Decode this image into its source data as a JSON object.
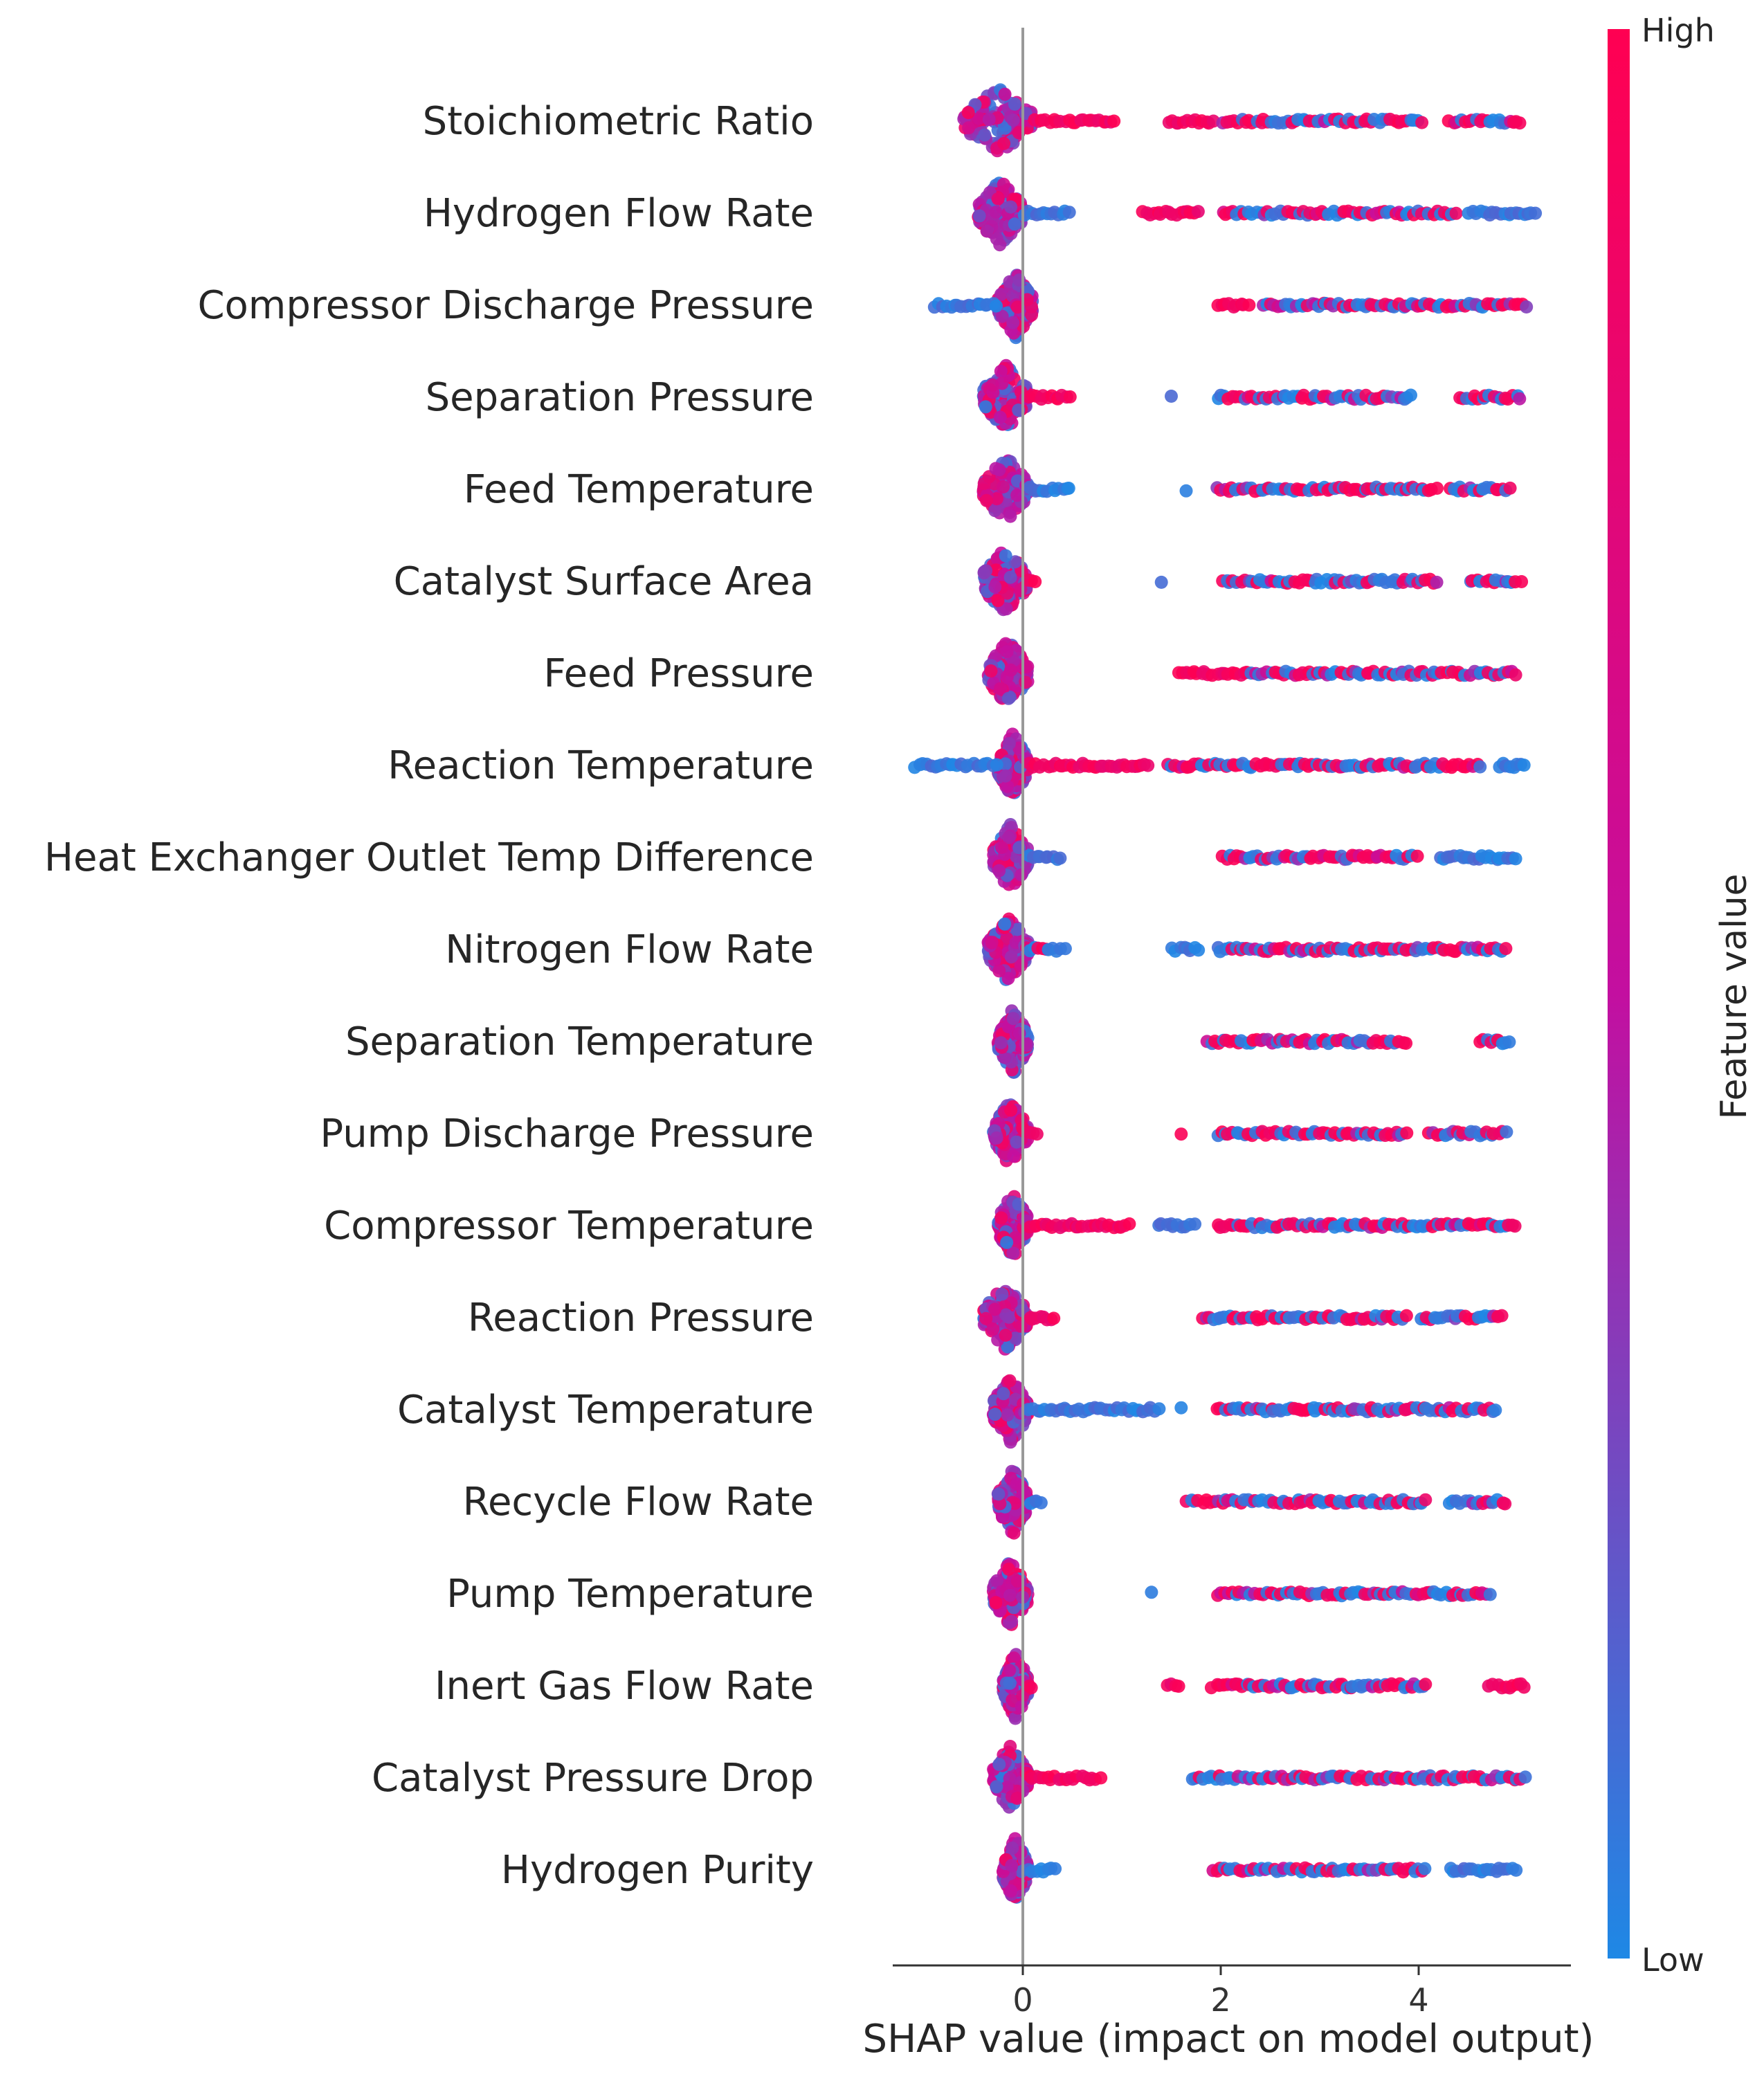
{
  "chart_data": {
    "type": "scatter",
    "subtype": "shap-beeswarm",
    "title": "",
    "xlabel": "SHAP value (impact on model output)",
    "ylabel": "",
    "xlim": [
      -1.35,
      5.5
    ],
    "xticks": [
      0,
      2,
      4
    ],
    "x_tick_labels": [
      "0",
      "2",
      "4"
    ],
    "zero_line": true,
    "colorbar": {
      "label": "Feature value",
      "high_label": "High",
      "low_label": "Low",
      "low_color": "#1e88e5",
      "mid_color": "#c30fa0",
      "high_color": "#ff0052"
    },
    "features": [
      {
        "name": "Stoichiometric Ratio",
        "core": [
          -0.6,
          0.1
        ],
        "spread": [
          {
            "from": 0.1,
            "to": 0.95,
            "color": "high"
          },
          {
            "from": 1.45,
            "to": 1.95,
            "color": "high"
          },
          {
            "from": 2.0,
            "to": 4.05,
            "color": "mixed"
          },
          {
            "from": 4.3,
            "to": 5.05,
            "color": "mixed"
          }
        ]
      },
      {
        "name": "Hydrogen Flow Rate",
        "core": [
          -0.45,
          0.0
        ],
        "spread": [
          {
            "from": 0.0,
            "to": 0.5,
            "color": "low"
          },
          {
            "from": 1.2,
            "to": 1.8,
            "color": "high"
          },
          {
            "from": 2.0,
            "to": 4.4,
            "color": "mixed"
          },
          {
            "from": 4.5,
            "to": 5.2,
            "color": "low"
          }
        ]
      },
      {
        "name": "Compressor Discharge Pressure",
        "core": [
          -0.25,
          0.1
        ],
        "spread": [
          {
            "from": -0.9,
            "to": -0.25,
            "color": "low"
          },
          {
            "from": 1.95,
            "to": 2.3,
            "color": "high"
          },
          {
            "from": 2.4,
            "to": 5.1,
            "color": "mixed"
          }
        ]
      },
      {
        "name": "Separation Pressure",
        "core": [
          -0.4,
          0.05
        ],
        "spread": [
          {
            "from": 0.05,
            "to": 0.5,
            "color": "high"
          },
          {
            "from": 1.5,
            "to": 1.5,
            "color": "low"
          },
          {
            "from": 1.95,
            "to": 3.95,
            "color": "mixed"
          },
          {
            "from": 4.4,
            "to": 5.05,
            "color": "mixed"
          }
        ]
      },
      {
        "name": "Feed Temperature",
        "core": [
          -0.4,
          0.05
        ],
        "spread": [
          {
            "from": 0.05,
            "to": 0.5,
            "color": "low"
          },
          {
            "from": 1.65,
            "to": 1.65,
            "color": "low"
          },
          {
            "from": 1.95,
            "to": 4.2,
            "color": "mixed"
          },
          {
            "from": 4.3,
            "to": 4.95,
            "color": "mixed"
          }
        ]
      },
      {
        "name": "Catalyst Surface Area",
        "core": [
          -0.4,
          0.05
        ],
        "spread": [
          {
            "from": 0.05,
            "to": 0.15,
            "color": "high"
          },
          {
            "from": 1.4,
            "to": 1.4,
            "color": "low"
          },
          {
            "from": 2.0,
            "to": 4.2,
            "color": "mixed"
          },
          {
            "from": 4.5,
            "to": 5.05,
            "color": "mixed"
          }
        ]
      },
      {
        "name": "Feed Pressure",
        "core": [
          -0.35,
          0.05
        ],
        "spread": [
          {
            "from": 1.55,
            "to": 2.3,
            "color": "high"
          },
          {
            "from": 2.3,
            "to": 5.0,
            "color": "mixed"
          }
        ]
      },
      {
        "name": "Reaction Temperature",
        "core": [
          -0.25,
          0.05
        ],
        "spread": [
          {
            "from": -1.1,
            "to": -0.25,
            "color": "low"
          },
          {
            "from": 0.05,
            "to": 1.3,
            "color": "high"
          },
          {
            "from": 1.45,
            "to": 4.65,
            "color": "mixed"
          },
          {
            "from": 4.8,
            "to": 5.1,
            "color": "low"
          }
        ]
      },
      {
        "name": "Heat Exchanger Outlet Temp Difference",
        "core": [
          -0.3,
          0.05
        ],
        "spread": [
          {
            "from": 0.05,
            "to": 0.4,
            "color": "low"
          },
          {
            "from": 2.0,
            "to": 4.0,
            "color": "mixed"
          },
          {
            "from": 4.2,
            "to": 5.0,
            "color": "low"
          }
        ]
      },
      {
        "name": "Nitrogen Flow Rate",
        "core": [
          -0.35,
          0.05
        ],
        "spread": [
          {
            "from": 0.05,
            "to": 0.45,
            "color": "mixed"
          },
          {
            "from": 1.5,
            "to": 1.8,
            "color": "low"
          },
          {
            "from": 1.95,
            "to": 4.9,
            "color": "mixed"
          }
        ]
      },
      {
        "name": "Separation Temperature",
        "core": [
          -0.25,
          0.05
        ],
        "spread": [
          {
            "from": 1.85,
            "to": 3.9,
            "color": "mixed"
          },
          {
            "from": 4.6,
            "to": 4.95,
            "color": "mixed"
          }
        ]
      },
      {
        "name": "Pump Discharge Pressure",
        "core": [
          -0.3,
          0.05
        ],
        "spread": [
          {
            "from": 0.05,
            "to": 0.15,
            "color": "high"
          },
          {
            "from": 1.6,
            "to": 1.6,
            "color": "high"
          },
          {
            "from": 1.95,
            "to": 3.9,
            "color": "mixed"
          },
          {
            "from": 4.1,
            "to": 4.9,
            "color": "mixed"
          }
        ]
      },
      {
        "name": "Compressor Temperature",
        "core": [
          -0.25,
          0.05
        ],
        "spread": [
          {
            "from": 0.05,
            "to": 1.1,
            "color": "high"
          },
          {
            "from": 1.35,
            "to": 1.75,
            "color": "low"
          },
          {
            "from": 1.95,
            "to": 5.0,
            "color": "mixed"
          }
        ]
      },
      {
        "name": "Reaction Pressure",
        "core": [
          -0.4,
          0.05
        ],
        "spread": [
          {
            "from": 0.05,
            "to": 0.35,
            "color": "high"
          },
          {
            "from": 1.8,
            "to": 3.9,
            "color": "mixed"
          },
          {
            "from": 4.0,
            "to": 4.85,
            "color": "mixed"
          }
        ]
      },
      {
        "name": "Catalyst Temperature",
        "core": [
          -0.3,
          0.05
        ],
        "spread": [
          {
            "from": 0.05,
            "to": 1.4,
            "color": "low"
          },
          {
            "from": 1.6,
            "to": 1.6,
            "color": "low"
          },
          {
            "from": 1.95,
            "to": 4.8,
            "color": "mixed"
          }
        ]
      },
      {
        "name": "Recycle Flow Rate",
        "core": [
          -0.25,
          0.05
        ],
        "spread": [
          {
            "from": 0.05,
            "to": 0.2,
            "color": "low"
          },
          {
            "from": 1.65,
            "to": 4.1,
            "color": "mixed"
          },
          {
            "from": 4.3,
            "to": 4.9,
            "color": "mixed"
          }
        ]
      },
      {
        "name": "Pump Temperature",
        "core": [
          -0.3,
          0.05
        ],
        "spread": [
          {
            "from": 1.3,
            "to": 1.3,
            "color": "low"
          },
          {
            "from": 1.95,
            "to": 4.75,
            "color": "mixed"
          }
        ]
      },
      {
        "name": "Inert Gas Flow Rate",
        "core": [
          -0.2,
          0.05
        ],
        "spread": [
          {
            "from": 0.05,
            "to": 0.1,
            "color": "high"
          },
          {
            "from": 1.45,
            "to": 1.6,
            "color": "high"
          },
          {
            "from": 1.9,
            "to": 4.1,
            "color": "mixed"
          },
          {
            "from": 4.7,
            "to": 5.1,
            "color": "high"
          }
        ]
      },
      {
        "name": "Catalyst Pressure Drop",
        "core": [
          -0.3,
          0.05
        ],
        "spread": [
          {
            "from": 0.05,
            "to": 0.8,
            "color": "high"
          },
          {
            "from": 1.7,
            "to": 5.1,
            "color": "mixed"
          }
        ]
      },
      {
        "name": "Hydrogen Purity",
        "core": [
          -0.2,
          0.05
        ],
        "spread": [
          {
            "from": 0.05,
            "to": 0.35,
            "color": "low"
          },
          {
            "from": 1.9,
            "to": 4.1,
            "color": "mixed"
          },
          {
            "from": 4.3,
            "to": 5.0,
            "color": "low"
          }
        ]
      }
    ]
  }
}
